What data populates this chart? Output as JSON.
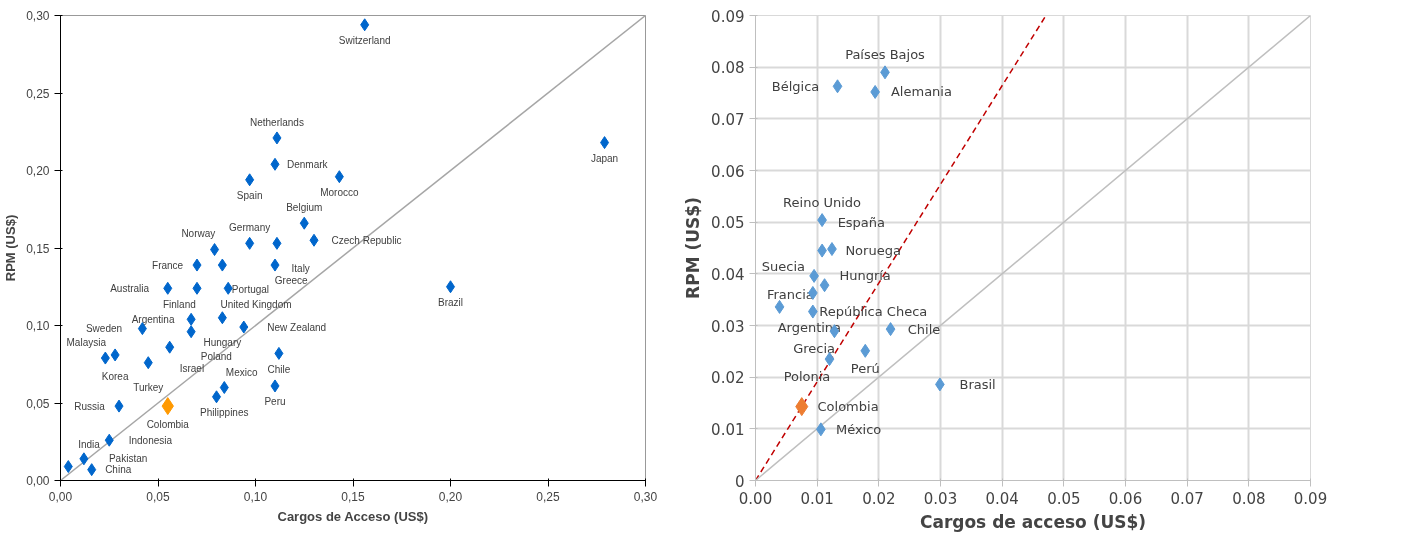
{
  "chart_data": [
    {
      "type": "scatter",
      "xlabel": "Cargos de Acceso (US$)",
      "ylabel": "RPM (US$)",
      "grid": false,
      "xlim": [
        0,
        0.3
      ],
      "ylim": [
        0,
        0.3
      ],
      "xticks": [
        {
          "value": 0,
          "label": "0,00"
        },
        {
          "value": 0.05,
          "label": "0,05"
        },
        {
          "value": 0.1,
          "label": "0,10"
        },
        {
          "value": 0.15,
          "label": "0,15"
        },
        {
          "value": 0.2,
          "label": "0,20"
        },
        {
          "value": 0.25,
          "label": "0,25"
        },
        {
          "value": 0.3,
          "label": "0,30"
        }
      ],
      "yticks": [
        {
          "value": 0,
          "label": "0,00"
        },
        {
          "value": 0.05,
          "label": "0,05"
        },
        {
          "value": 0.1,
          "label": "0,10"
        },
        {
          "value": 0.15,
          "label": "0,15"
        },
        {
          "value": 0.2,
          "label": "0,20"
        },
        {
          "value": 0.25,
          "label": "0,25"
        },
        {
          "value": 0.3,
          "label": "0,30"
        }
      ],
      "series": [
        {
          "marker": "diamond",
          "color": "#0066cc",
          "x": [
            0.156,
            0.279,
            0.2,
            0.111,
            0.11,
            0.097,
            0.143,
            0.125,
            0.13,
            0.097,
            0.111,
            0.079,
            0.07,
            0.083,
            0.11,
            0.055,
            0.07,
            0.086,
            0.083,
            0.067,
            0.094,
            0.042,
            0.067,
            0.056,
            0.112,
            0.028,
            0.023,
            0.045,
            0.11,
            0.084,
            0.08,
            0.03,
            0.025,
            0.012,
            0.004,
            0.016
          ],
          "values": [
            0.294,
            0.218,
            0.125,
            0.221,
            0.204,
            0.194,
            0.196,
            0.166,
            0.155,
            0.153,
            0.153,
            0.149,
            0.139,
            0.139,
            0.139,
            0.124,
            0.124,
            0.124,
            0.105,
            0.104,
            0.099,
            0.098,
            0.096,
            0.086,
            0.082,
            0.081,
            0.079,
            0.076,
            0.061,
            0.06,
            0.054,
            0.048,
            0.026,
            0.014,
            0.009,
            0.007
          ]
        },
        {
          "marker": "diamond",
          "color": "#ff9900",
          "x": [
            0.055
          ],
          "values": [
            0.048
          ]
        },
        {
          "type": "line",
          "color": "#a6a6a6",
          "line_style": "solid",
          "x": [
            0,
            0.3
          ],
          "values": [
            0,
            0.3
          ]
        }
      ],
      "annotations": [
        {
          "text": "Switzerland",
          "x": 0.156,
          "y": 0.294
        },
        {
          "text": "Japan",
          "x": 0.279,
          "y": 0.218
        },
        {
          "text": "Brazil",
          "x": 0.2,
          "y": 0.125
        },
        {
          "text": "Netherlands",
          "x": 0.111,
          "y": 0.221
        },
        {
          "text": "Denmark",
          "x": 0.11,
          "y": 0.204
        },
        {
          "text": "Spain",
          "x": 0.097,
          "y": 0.194
        },
        {
          "text": "Morocco",
          "x": 0.143,
          "y": 0.196
        },
        {
          "text": "Belgium",
          "x": 0.125,
          "y": 0.166
        },
        {
          "text": "Czech Republic",
          "x": 0.13,
          "y": 0.155
        },
        {
          "text": "Germany",
          "x": 0.097,
          "y": 0.153
        },
        {
          "text": "Italy",
          "x": 0.111,
          "y": 0.153
        },
        {
          "text": "Norway",
          "x": 0.079,
          "y": 0.149
        },
        {
          "text": "France",
          "x": 0.07,
          "y": 0.139
        },
        {
          "text": "Portugal",
          "x": 0.083,
          "y": 0.139
        },
        {
          "text": "Greece",
          "x": 0.11,
          "y": 0.139
        },
        {
          "text": "Australia",
          "x": 0.055,
          "y": 0.124
        },
        {
          "text": "Finland",
          "x": 0.07,
          "y": 0.124
        },
        {
          "text": "United Kingdom",
          "x": 0.086,
          "y": 0.124
        },
        {
          "text": "Hungary",
          "x": 0.083,
          "y": 0.105
        },
        {
          "text": "Argentina",
          "x": 0.067,
          "y": 0.104
        },
        {
          "text": "New Zealand",
          "x": 0.094,
          "y": 0.099
        },
        {
          "text": "Sweden",
          "x": 0.042,
          "y": 0.098
        },
        {
          "text": "Poland",
          "x": 0.067,
          "y": 0.096
        },
        {
          "text": "Israel",
          "x": 0.056,
          "y": 0.086
        },
        {
          "text": "Chile",
          "x": 0.112,
          "y": 0.082
        },
        {
          "text": "Korea",
          "x": 0.028,
          "y": 0.081
        },
        {
          "text": "Malaysia",
          "x": 0.023,
          "y": 0.079
        },
        {
          "text": "Turkey",
          "x": 0.045,
          "y": 0.076
        },
        {
          "text": "Peru",
          "x": 0.11,
          "y": 0.061
        },
        {
          "text": "Philippines",
          "x": 0.084,
          "y": 0.06
        },
        {
          "text": "Mexico",
          "x": 0.08,
          "y": 0.054
        },
        {
          "text": "Colombia",
          "x": 0.055,
          "y": 0.048
        },
        {
          "text": "Russia",
          "x": 0.03,
          "y": 0.048
        },
        {
          "text": "Indonesia",
          "x": 0.025,
          "y": 0.026
        },
        {
          "text": "Pakistan",
          "x": 0.012,
          "y": 0.014
        },
        {
          "text": "India",
          "x": 0.004,
          "y": 0.009
        },
        {
          "text": "China",
          "x": 0.016,
          "y": 0.007
        }
      ]
    },
    {
      "type": "scatter",
      "xlabel": "Cargos de acceso (US$)",
      "ylabel": "RPM (US$)",
      "grid": true,
      "xlim": [
        0,
        0.09
      ],
      "ylim": [
        0,
        0.09
      ],
      "xticks": [
        {
          "value": 0,
          "label": "0.00"
        },
        0.01,
        0.02,
        0.03,
        0.04,
        0.05,
        0.06,
        0.07,
        0.08,
        0.09
      ],
      "yticks": [
        0,
        0.01,
        0.02,
        0.03,
        0.04,
        0.05,
        0.06,
        0.07,
        0.08,
        0.09
      ],
      "series": [
        {
          "marker": "diamond",
          "color": "#5b9bd5",
          "x": [
            0.021,
            0.0133,
            0.0194,
            0.0108,
            0.0124,
            0.0108,
            0.0095,
            0.0112,
            0.0093,
            0.0039,
            0.0093,
            0.0128,
            0.0219,
            0.0178,
            0.012,
            0.0299,
            0.0106
          ],
          "values": [
            0.079,
            0.0763,
            0.0752,
            0.0504,
            0.0448,
            0.0445,
            0.0396,
            0.0378,
            0.0363,
            0.0336,
            0.0327,
            0.0289,
            0.0293,
            0.0251,
            0.0235,
            0.0186,
            0.0099
          ]
        },
        {
          "marker": "diamond",
          "color": "#ed7d31",
          "x": [
            0.0075
          ],
          "values": [
            0.0143
          ]
        },
        {
          "type": "line",
          "color": "#c00000",
          "line_style": "dashed",
          "x": [
            0,
            0.0471
          ],
          "values": [
            0,
            0.09
          ]
        },
        {
          "type": "line",
          "color": "#bfbfbf",
          "line_style": "solid",
          "x": [
            0,
            0.09
          ],
          "values": [
            0,
            0.09
          ]
        }
      ],
      "annotations": [
        {
          "text": "Países Bajos",
          "x": 0.021,
          "y": 0.079
        },
        {
          "text": "Bélgica",
          "x": 0.0133,
          "y": 0.0763
        },
        {
          "text": "Alemania",
          "x": 0.0194,
          "y": 0.0752
        },
        {
          "text": "Reino Unido",
          "x": 0.0108,
          "y": 0.0504
        },
        {
          "text": "España",
          "x": 0.0124,
          "y": 0.0448
        },
        {
          "text": "Noruega",
          "x": 0.0108,
          "y": 0.0445
        },
        {
          "text": "Hungría",
          "x": 0.0095,
          "y": 0.0396
        },
        {
          "text": "República Checa",
          "x": 0.0112,
          "y": 0.0378
        },
        {
          "text": "Suecia",
          "x": 0.0093,
          "y": 0.0363
        },
        {
          "text": "Argentina",
          "x": 0.0039,
          "y": 0.0336
        },
        {
          "text": "Francia",
          "x": 0.0093,
          "y": 0.0327
        },
        {
          "text": "Grecia",
          "x": 0.0128,
          "y": 0.0289
        },
        {
          "text": "Chile",
          "x": 0.0219,
          "y": 0.0293
        },
        {
          "text": "Perú",
          "x": 0.0178,
          "y": 0.0251
        },
        {
          "text": "Polonia",
          "x": 0.012,
          "y": 0.0235
        },
        {
          "text": "Brasil",
          "x": 0.0299,
          "y": 0.0186
        },
        {
          "text": "Colombia",
          "x": 0.0075,
          "y": 0.0143
        },
        {
          "text": "México",
          "x": 0.0106,
          "y": 0.0099
        }
      ]
    }
  ]
}
